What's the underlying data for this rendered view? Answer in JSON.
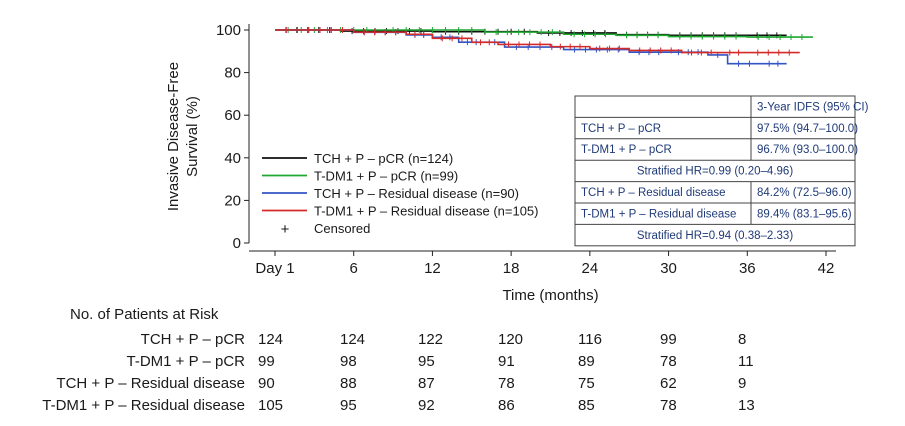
{
  "chart_data": {
    "type": "line",
    "title": "",
    "xlabel": "Time (months)",
    "ylabel_line1": "Invasive Disease-Free",
    "ylabel_line2": "Survival (%)",
    "xlim": [
      0,
      42
    ],
    "ylim": [
      0,
      100
    ],
    "x_ticks": [
      0,
      6,
      12,
      18,
      24,
      30,
      36,
      42
    ],
    "x_tick_labels": [
      "Day 1",
      "6",
      "12",
      "18",
      "24",
      "30",
      "36",
      "42"
    ],
    "y_ticks": [
      0,
      20,
      40,
      60,
      80,
      100
    ],
    "y_tick_labels": [
      "0",
      "20",
      "40",
      "60",
      "80",
      "100"
    ],
    "series": [
      {
        "name": "TCH + P – pCR (n=124)",
        "color": "#111111",
        "x": [
          0,
          5,
          12,
          20,
          26,
          30,
          36,
          39
        ],
        "values": [
          100,
          99.5,
          99.2,
          98.6,
          97.8,
          97.5,
          97.5,
          97.5
        ]
      },
      {
        "name": "T-DM1 + P – pCR (n=99)",
        "color": "#1fa831",
        "x": [
          0,
          8,
          16,
          22,
          26,
          30,
          36,
          41
        ],
        "values": [
          100,
          100,
          99,
          98,
          97.5,
          96.9,
          96.7,
          96.7
        ]
      },
      {
        "name": "TCH + P – Residual disease (n=90)",
        "color": "#3355c4",
        "x": [
          0,
          6,
          10,
          12,
          14,
          16,
          17.5,
          22,
          27,
          30,
          33,
          34.5,
          37,
          39
        ],
        "values": [
          100,
          98.9,
          97.7,
          96.6,
          94.3,
          94.3,
          92,
          90.8,
          89.6,
          89.6,
          88.3,
          84.2,
          84.2,
          84.2
        ]
      },
      {
        "name": "T-DM1 + P – Residual disease (n=105)",
        "color": "#d42a2a",
        "x": [
          0,
          6,
          10,
          12,
          15,
          17,
          21,
          24,
          27,
          31,
          34,
          36,
          40
        ],
        "values": [
          100,
          99,
          98,
          96.1,
          94.2,
          93.2,
          92.2,
          91.3,
          90.4,
          89.4,
          89.4,
          89.4,
          89.4
        ]
      }
    ],
    "legend": {
      "placement": "lower-left",
      "entries": [
        "TCH + P – pCR (n=124)",
        "T-DM1 + P – pCR (n=99)",
        "TCH + P – Residual disease (n=90)",
        "T-DM1 + P – Residual disease (n=105)"
      ],
      "censored_symbol": "+",
      "censored_label": "Censored"
    },
    "table": {
      "placement": "lower-right",
      "header": "3-Year IDFS (95% CI)",
      "rows": [
        {
          "label": "TCH + P – pCR",
          "value": "97.5% (94.7–100.0)"
        },
        {
          "label": "T-DM1 + P – pCR",
          "value": "96.7% (93.0–100.0)"
        },
        {
          "span": "Stratified HR=0.99 (0.20–4.96)"
        },
        {
          "label": "TCH + P – Residual disease",
          "value": "84.2% (72.5–96.0)"
        },
        {
          "label": "T-DM1 + P – Residual disease",
          "value": "89.4% (83.1–95.6)"
        },
        {
          "span": "Stratified HR=0.94 (0.38–2.33)"
        }
      ],
      "text_color": "#1f3a78"
    },
    "at_risk": {
      "title": "No. of Patients at Risk",
      "rows": [
        {
          "label": "TCH + P – pCR",
          "values": [
            124,
            124,
            122,
            120,
            116,
            99,
            8
          ]
        },
        {
          "label": "T-DM1 + P – pCR",
          "values": [
            99,
            98,
            95,
            91,
            89,
            78,
            11
          ]
        },
        {
          "label": "TCH + P – Residual disease",
          "values": [
            90,
            88,
            87,
            78,
            75,
            62,
            9
          ]
        },
        {
          "label": "T-DM1 + P – Residual disease",
          "values": [
            105,
            95,
            92,
            86,
            85,
            78,
            13
          ]
        }
      ]
    }
  }
}
